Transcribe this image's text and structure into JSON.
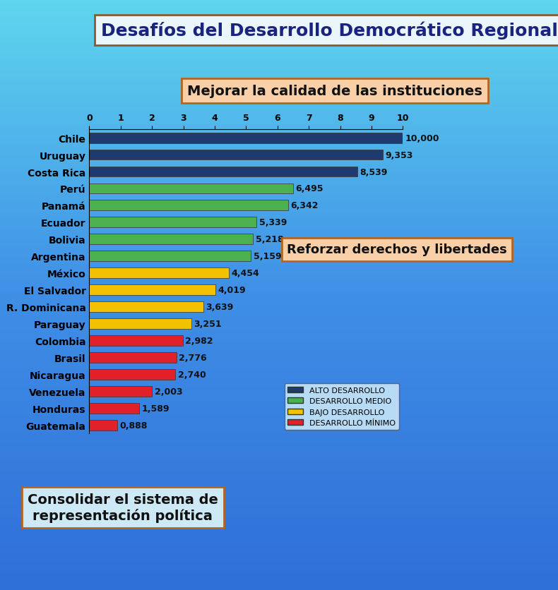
{
  "chart_data": {
    "type": "bar",
    "orientation": "horizontal",
    "title": "Desafíos del Desarrollo Democrático Regional",
    "annotations": [
      "Mejorar la calidad de las instituciones",
      "Reforzar derechos y libertades",
      "Consolidar el sistema de\nrepresentación política"
    ],
    "categories": [
      "Chile",
      "Uruguay",
      "Costa Rica",
      "Perú",
      "Panamá",
      "Ecuador",
      "Bolivia",
      "Argentina",
      "México",
      "El Salvador",
      "R. Dominicana",
      "Paraguay",
      "Colombia",
      "Brasil",
      "Nicaragua",
      "Venezuela",
      "Honduras",
      "Guatemala"
    ],
    "series": [
      {
        "name": "ALTO DESARROLLO",
        "color": "#1f3a6e",
        "values": [
          10.0,
          9.353,
          8.539,
          null,
          null,
          null,
          null,
          null,
          null,
          null,
          null,
          null,
          null,
          null,
          null,
          null,
          null,
          null
        ],
        "value_labels": [
          "10,000",
          "9,353",
          "8,539",
          null,
          null,
          null,
          null,
          null,
          null,
          null,
          null,
          null,
          null,
          null,
          null,
          null,
          null,
          null
        ]
      },
      {
        "name": "DESARROLLO MEDIO",
        "color": "#4caf50",
        "values": [
          null,
          null,
          null,
          6.495,
          6.342,
          5.339,
          5.218,
          5.159,
          null,
          null,
          null,
          null,
          null,
          null,
          null,
          null,
          null,
          null
        ],
        "value_labels": [
          null,
          null,
          null,
          "6,495",
          "6,342",
          "5,339",
          "5,218",
          "5,159",
          null,
          null,
          null,
          null,
          null,
          null,
          null,
          null,
          null,
          null
        ]
      },
      {
        "name": "BAJO DESARROLLO",
        "color": "#f2c200",
        "values": [
          null,
          null,
          null,
          null,
          null,
          null,
          null,
          null,
          4.454,
          4.019,
          3.639,
          3.251,
          null,
          null,
          null,
          null,
          null,
          null
        ],
        "value_labels": [
          null,
          null,
          null,
          null,
          null,
          null,
          null,
          null,
          "4,454",
          "4,019",
          "3,639",
          "3,251",
          null,
          null,
          null,
          null,
          null,
          null
        ]
      },
      {
        "name": "DESARROLLO MÍNIMO",
        "color": "#e0202a",
        "values": [
          null,
          null,
          null,
          null,
          null,
          null,
          null,
          null,
          null,
          null,
          null,
          null,
          2.982,
          2.776,
          2.74,
          2.003,
          1.589,
          0.888
        ],
        "value_labels": [
          null,
          null,
          null,
          null,
          null,
          null,
          null,
          null,
          null,
          null,
          null,
          null,
          "2,982",
          "2,776",
          "2,740",
          "2,003",
          "1,589",
          "0,888"
        ]
      }
    ],
    "xlim": [
      0,
      10
    ],
    "xticks": [
      0,
      1,
      2,
      3,
      4,
      5,
      6,
      7,
      8,
      9,
      10
    ],
    "data_labels": true,
    "legend": "lower right"
  }
}
